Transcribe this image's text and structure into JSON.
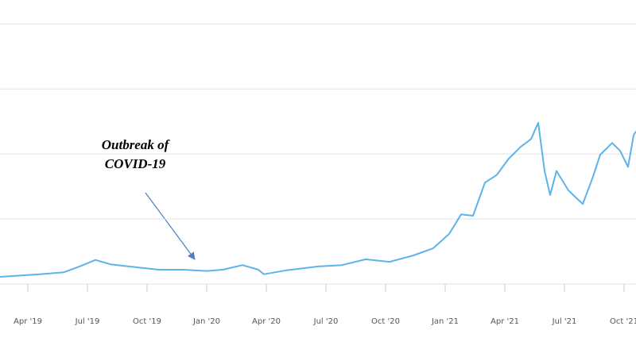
{
  "chart_data": {
    "type": "line",
    "annotation": [
      "Outbreak of",
      "COVID-19"
    ],
    "x": [
      1.6,
      3.6,
      4.8,
      5.6,
      6.4,
      7.2,
      8.4,
      9.6,
      10.8,
      12.0,
      12.8,
      13.8,
      14.6,
      14.88,
      16.0,
      17.6,
      18.8,
      20.0,
      21.2,
      22.4,
      23.4,
      24.2,
      24.8,
      25.4,
      26.0,
      26.6,
      27.2,
      27.8,
      28.32,
      28.68,
      29.0,
      29.28,
      29.6,
      30.2,
      30.92,
      31.4,
      31.8,
      32.4,
      32.8,
      33.2,
      33.48,
      33.6
    ],
    "series": [
      {
        "color": "#5cb3ea",
        "values": [
          0.11,
          0.15,
          0.18,
          0.27,
          0.37,
          0.3,
          0.26,
          0.22,
          0.22,
          0.2,
          0.22,
          0.29,
          0.22,
          0.15,
          0.21,
          0.27,
          0.29,
          0.38,
          0.34,
          0.44,
          0.55,
          0.77,
          1.07,
          1.05,
          1.56,
          1.68,
          1.93,
          2.11,
          2.23,
          2.48,
          1.74,
          1.37,
          1.74,
          1.44,
          1.23,
          1.62,
          1.99,
          2.17,
          2.05,
          1.8,
          2.29,
          2.35
        ]
      }
    ],
    "xlim": [
      1.6,
      33.6
    ],
    "xticks": [
      {
        "value": 3,
        "label": "Apr '19"
      },
      {
        "value": 6,
        "label": "Jul '19"
      },
      {
        "value": 9,
        "label": "Oct '19"
      },
      {
        "value": 12,
        "label": "Jan '20"
      },
      {
        "value": 15,
        "label": "Apr '20"
      },
      {
        "value": 18,
        "label": "Jul '20"
      },
      {
        "value": 21,
        "label": "Oct '20"
      },
      {
        "value": 24,
        "label": "Jan '21"
      },
      {
        "value": 27,
        "label": "Apr '21"
      },
      {
        "value": 30,
        "label": "Jul '21"
      },
      {
        "value": 33,
        "label": "Oct '21"
      }
    ],
    "ylim": [
      0,
      4.37
    ],
    "ygrid": [
      0,
      1,
      2,
      3,
      4
    ],
    "grid": true
  }
}
